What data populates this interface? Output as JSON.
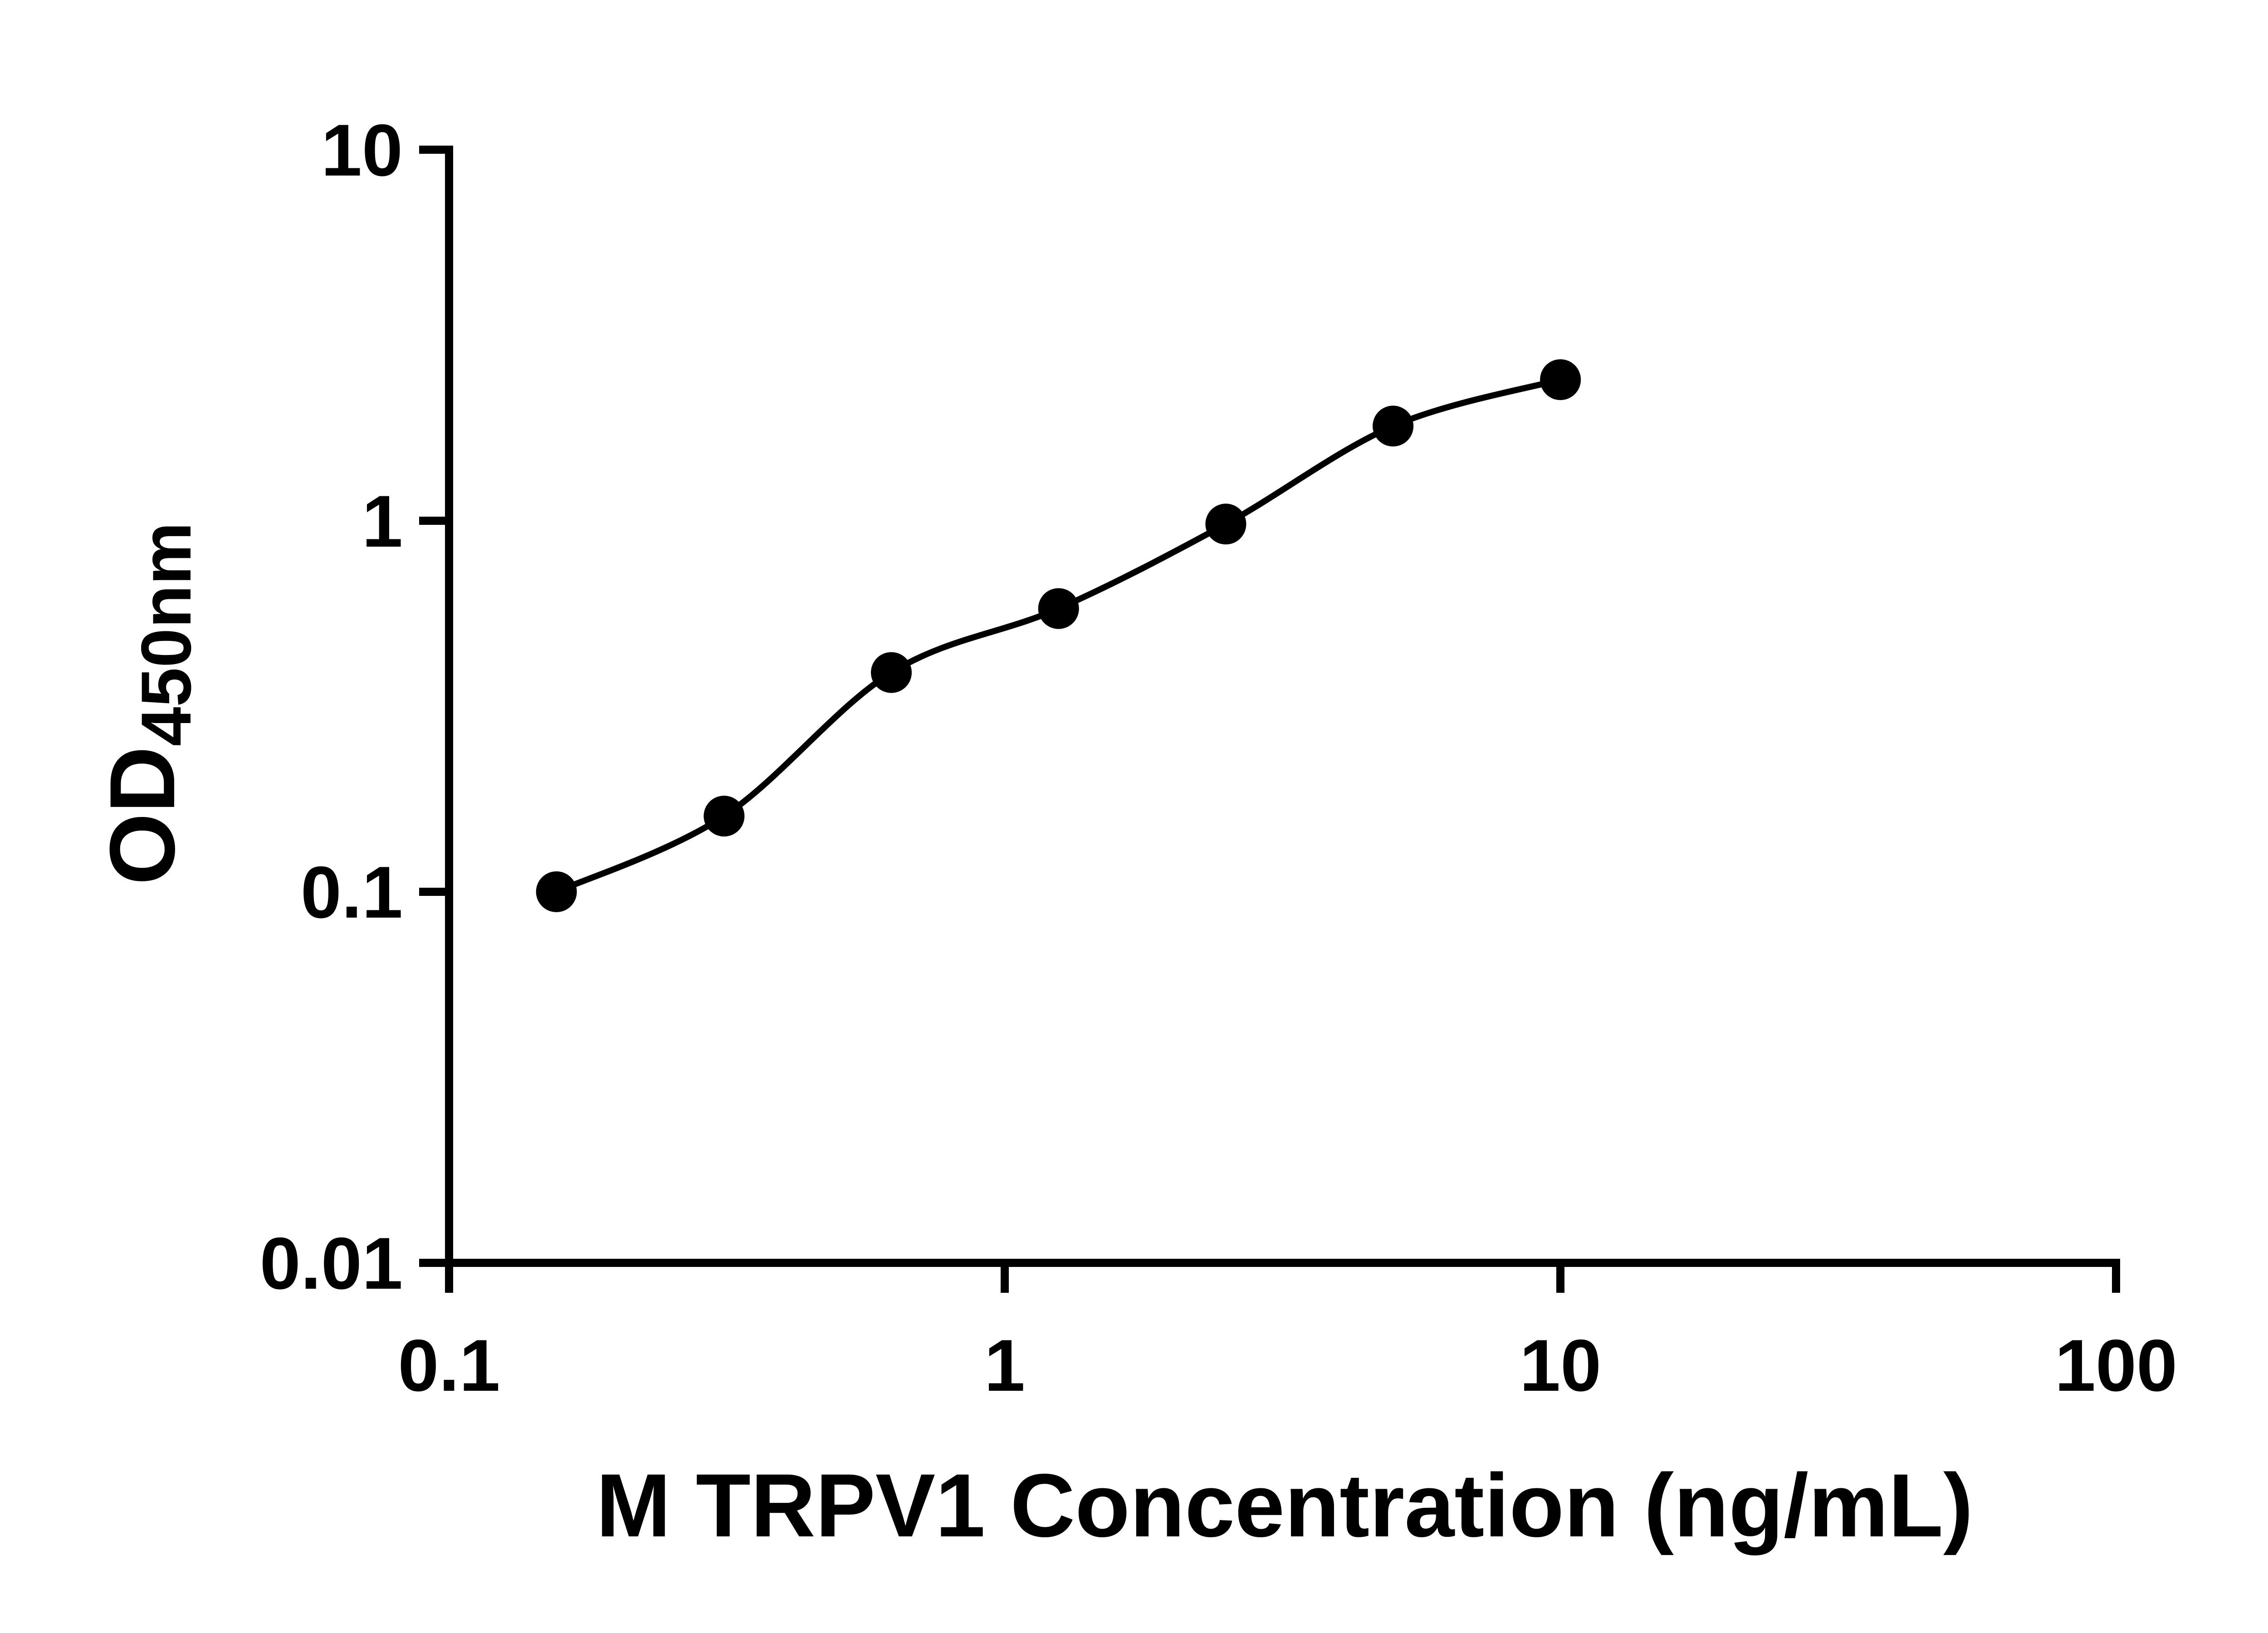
{
  "chart_data": {
    "type": "scatter",
    "title": "",
    "xlabel": "M TRPV1 Concentration (ng/mL)",
    "ylabel": "OD450nm",
    "ylabel_main": "OD",
    "ylabel_sub": "450nm",
    "x_scale": "log",
    "y_scale": "log",
    "xlim": [
      0.1,
      100
    ],
    "ylim": [
      0.01,
      10
    ],
    "x_tick_values": [
      0.1,
      1,
      10,
      100
    ],
    "x_tick_labels": [
      "0.1",
      "1",
      "10",
      "100"
    ],
    "y_tick_values": [
      0.01,
      0.1,
      1,
      10
    ],
    "y_tick_labels": [
      "0.01",
      "0.1",
      "1",
      "10"
    ],
    "grid": false,
    "legend": false,
    "marker": "filled-circle",
    "colors": {
      "points": "#000000",
      "curve": "#000000",
      "axes": "#000000",
      "text": "#000000",
      "background": "#ffffff"
    },
    "series": [
      {
        "x": [
          0.156,
          0.3125,
          0.625,
          1.25,
          2.5,
          5,
          10
        ],
        "y": [
          0.1,
          0.16,
          0.39,
          0.58,
          0.98,
          1.8,
          2.4
        ],
        "fit": "smooth-curve"
      }
    ]
  }
}
